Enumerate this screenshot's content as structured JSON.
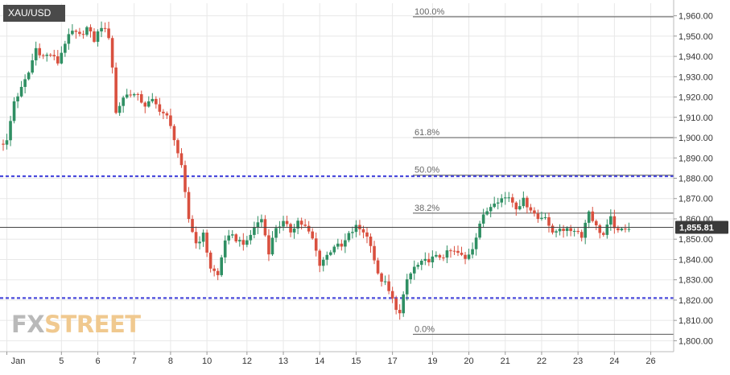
{
  "symbol": "XAU/USD",
  "logo": {
    "part1": "FX",
    "part2": "STREET"
  },
  "colors": {
    "up": "#2f8f63",
    "down": "#d9503f",
    "support_resistance": "#4b4bdc",
    "fib": "#555555",
    "grid": "#e8e8e8",
    "price_tag": "#3a3a3a"
  },
  "chart_data": {
    "type": "candlestick",
    "symbol": "XAU/USD",
    "ylim": [
      1800,
      1965
    ],
    "y_ticks": [
      1800,
      1810,
      1820,
      1830,
      1840,
      1850,
      1860,
      1870,
      1880,
      1890,
      1900,
      1910,
      1920,
      1930,
      1940,
      1950,
      1960
    ],
    "y_tick_labels": [
      "1,800.00",
      "1,810.00",
      "1,820.00",
      "1,830.00",
      "1,840.00",
      "1,850.00",
      "1,860.00",
      "1,870.00",
      "1,880.00",
      "1,890.00",
      "1,900.00",
      "1,910.00",
      "1,920.00",
      "1,930.00",
      "1,940.00",
      "1,950.00",
      "1,960.00"
    ],
    "x_ticks": [
      {
        "label": "Jan",
        "index": 1
      },
      {
        "label": "5",
        "index": 16
      },
      {
        "label": "6",
        "index": 26
      },
      {
        "label": "7",
        "index": 36
      },
      {
        "label": "8",
        "index": 46
      },
      {
        "label": "10",
        "index": 56
      },
      {
        "label": "12",
        "index": 67
      },
      {
        "label": "13",
        "index": 77
      },
      {
        "label": "14",
        "index": 87
      },
      {
        "label": "15",
        "index": 97
      },
      {
        "label": "17",
        "index": 107
      },
      {
        "label": "19",
        "index": 118
      },
      {
        "label": "20",
        "index": 128
      },
      {
        "label": "21",
        "index": 138
      },
      {
        "label": "22",
        "index": 148
      },
      {
        "label": "23",
        "index": 158
      },
      {
        "label": "24",
        "index": 168
      },
      {
        "label": "26",
        "index": 178
      }
    ],
    "current_price": 1855.81,
    "current_price_label": "1,855.81",
    "horizontal_lines": [
      {
        "value": 1881,
        "style": "dashed"
      },
      {
        "value": 1821,
        "style": "dashed"
      }
    ],
    "fibonacci": [
      {
        "label": "100.0%",
        "value": 1959.5
      },
      {
        "label": "61.8%",
        "value": 1900
      },
      {
        "label": "50.0%",
        "value": 1881.5
      },
      {
        "label": "38.2%",
        "value": 1862.8
      },
      {
        "label": "0.0%",
        "value": 1803.2
      }
    ],
    "waypoints": [
      [
        0,
        1897
      ],
      [
        2,
        1898
      ],
      [
        4,
        1918
      ],
      [
        6,
        1924
      ],
      [
        8,
        1932
      ],
      [
        10,
        1944
      ],
      [
        12,
        1940
      ],
      [
        14,
        1941
      ],
      [
        16,
        1937
      ],
      [
        18,
        1947
      ],
      [
        20,
        1952
      ],
      [
        22,
        1950
      ],
      [
        24,
        1954
      ],
      [
        26,
        1948
      ],
      [
        28,
        1955
      ],
      [
        30,
        1950
      ],
      [
        31,
        1935
      ],
      [
        32,
        1912
      ],
      [
        34,
        1920
      ],
      [
        36,
        1922
      ],
      [
        38,
        1920
      ],
      [
        40,
        1916
      ],
      [
        42,
        1918
      ],
      [
        44,
        1914
      ],
      [
        46,
        1910
      ],
      [
        48,
        1900
      ],
      [
        50,
        1885
      ],
      [
        51,
        1872
      ],
      [
        52,
        1860
      ],
      [
        54,
        1848
      ],
      [
        56,
        1852
      ],
      [
        58,
        1836
      ],
      [
        60,
        1832
      ],
      [
        62,
        1850
      ],
      [
        64,
        1851
      ],
      [
        66,
        1849
      ],
      [
        68,
        1848
      ],
      [
        70,
        1856
      ],
      [
        72,
        1860
      ],
      [
        74,
        1844
      ],
      [
        76,
        1856
      ],
      [
        78,
        1858
      ],
      [
        80,
        1854
      ],
      [
        82,
        1859
      ],
      [
        84,
        1856
      ],
      [
        86,
        1850
      ],
      [
        88,
        1838
      ],
      [
        90,
        1842
      ],
      [
        92,
        1847
      ],
      [
        94,
        1846
      ],
      [
        96,
        1852
      ],
      [
        98,
        1856
      ],
      [
        100,
        1854
      ],
      [
        102,
        1848
      ],
      [
        104,
        1832
      ],
      [
        106,
        1828
      ],
      [
        108,
        1820
      ],
      [
        110,
        1813
      ],
      [
        112,
        1830
      ],
      [
        114,
        1836
      ],
      [
        116,
        1838
      ],
      [
        118,
        1840
      ],
      [
        120,
        1841
      ],
      [
        122,
        1842
      ],
      [
        124,
        1844
      ],
      [
        126,
        1843
      ],
      [
        128,
        1840
      ],
      [
        130,
        1846
      ],
      [
        132,
        1858
      ],
      [
        134,
        1864
      ],
      [
        136,
        1869
      ],
      [
        138,
        1870
      ],
      [
        140,
        1871
      ],
      [
        142,
        1866
      ],
      [
        144,
        1869
      ],
      [
        146,
        1865
      ],
      [
        148,
        1860
      ],
      [
        150,
        1862
      ],
      [
        152,
        1852
      ],
      [
        154,
        1856
      ],
      [
        156,
        1854
      ],
      [
        158,
        1855
      ],
      [
        160,
        1852
      ],
      [
        162,
        1864
      ],
      [
        164,
        1856
      ],
      [
        166,
        1852
      ],
      [
        168,
        1860
      ],
      [
        170,
        1853
      ],
      [
        172,
        1856
      ]
    ],
    "candle_count": 181
  }
}
